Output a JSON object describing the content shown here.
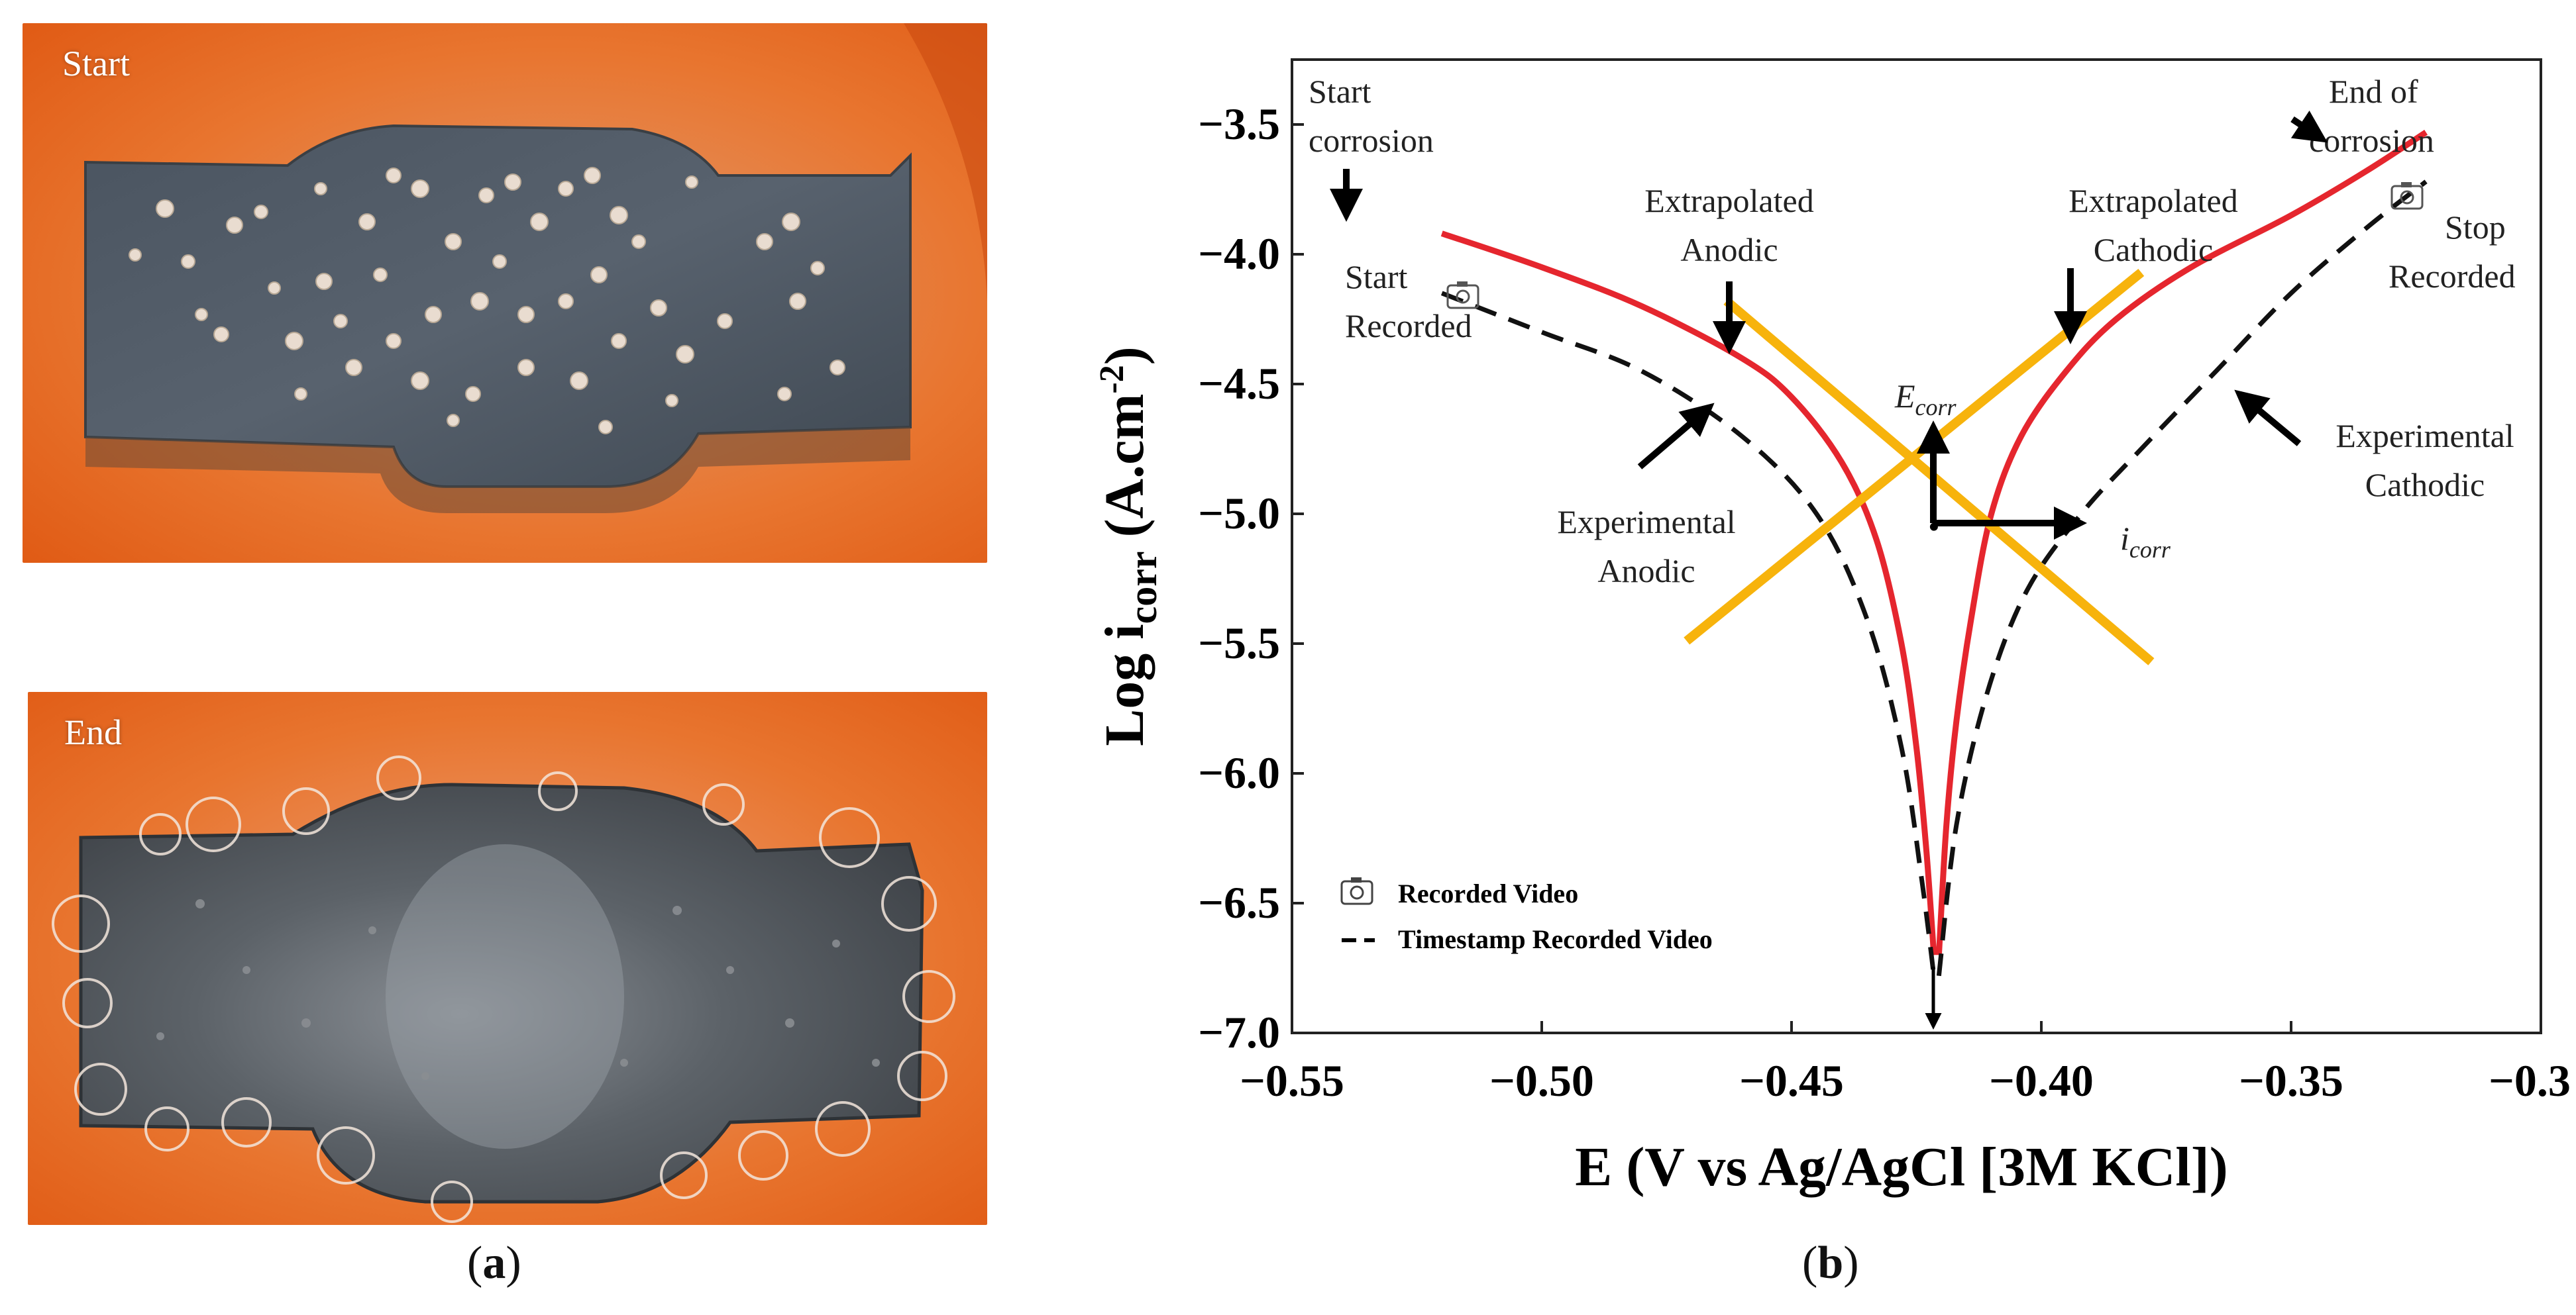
{
  "panel_a": {
    "top_label": "Start",
    "bottom_label": "End",
    "caption_open": "(",
    "caption_letter": "a",
    "caption_close": ")"
  },
  "panel_b": {
    "caption_open": "(",
    "caption_letter": "b",
    "caption_close": ")"
  },
  "colors": {
    "experimental": "#e5262e",
    "extrapolated": "#f7b30c",
    "timestamp_curve": "#111111",
    "photo_background": "#e8692b",
    "metal": "#4e5763"
  },
  "chart_data": {
    "type": "line",
    "xlabel": "E (V vs Ag/AgCl [3M KCl])",
    "ylabel_main": "Log i",
    "ylabel_sub": "corr",
    "ylabel_unit": " (A.cm",
    "ylabel_exp": "-2",
    "ylabel_close": ")",
    "xlim": [
      -0.55,
      -0.3
    ],
    "ylim": [
      -7.0,
      -3.25
    ],
    "x_ticks": [
      -0.55,
      -0.5,
      -0.45,
      -0.4,
      -0.35,
      -0.3
    ],
    "x_tick_labels": [
      "−0.55",
      "−0.50",
      "−0.45",
      "−0.40",
      "−0.35",
      "−0.30"
    ],
    "y_ticks": [
      -3.5,
      -4.0,
      -4.5,
      -5.0,
      -5.5,
      -6.0,
      -6.5,
      -7.0
    ],
    "y_tick_labels": [
      "−3.5",
      "−4.0",
      "−4.5",
      "−5.0",
      "−5.5",
      "−6.0",
      "−6.5",
      "−7.0"
    ],
    "series": [
      {
        "key": "experimental_anodic",
        "x": [
          -0.52,
          -0.5,
          -0.48,
          -0.46,
          -0.45,
          -0.44,
          -0.433,
          -0.428,
          -0.425,
          -0.423,
          -0.4215
        ],
        "y": [
          -3.92,
          -4.05,
          -4.2,
          -4.4,
          -4.55,
          -4.8,
          -5.1,
          -5.5,
          -5.9,
          -6.3,
          -6.7
        ]
      },
      {
        "key": "experimental_cathodic",
        "x": [
          -0.4205,
          -0.419,
          -0.417,
          -0.414,
          -0.41,
          -0.404,
          -0.395,
          -0.385,
          -0.37,
          -0.35,
          -0.335,
          -0.323
        ],
        "y": [
          -6.7,
          -6.2,
          -5.8,
          -5.4,
          -5.0,
          -4.7,
          -4.45,
          -4.25,
          -4.05,
          -3.85,
          -3.68,
          -3.53
        ]
      },
      {
        "key": "timestamp_anodic",
        "x": [
          -0.52,
          -0.5,
          -0.48,
          -0.46,
          -0.445,
          -0.435,
          -0.428,
          -0.424,
          -0.4215
        ],
        "y": [
          -4.15,
          -4.3,
          -4.45,
          -4.7,
          -5.0,
          -5.4,
          -5.9,
          -6.4,
          -6.78
        ]
      },
      {
        "key": "timestamp_cathodic",
        "x": [
          -0.4205,
          -0.417,
          -0.411,
          -0.403,
          -0.392,
          -0.38,
          -0.365,
          -0.35,
          -0.335,
          -0.323
        ],
        "y": [
          -6.78,
          -6.2,
          -5.7,
          -5.3,
          -5.0,
          -4.75,
          -4.45,
          -4.15,
          -3.9,
          -3.72
        ]
      },
      {
        "key": "extrapolated_anodic",
        "x": [
          -0.463,
          -0.378
        ],
        "y": [
          -4.18,
          -5.57
        ]
      },
      {
        "key": "extrapolated_cathodic",
        "x": [
          -0.471,
          -0.38
        ],
        "y": [
          -5.49,
          -4.07
        ]
      }
    ],
    "corrosion_point": {
      "E": -0.4215,
      "logi": -5.05
    },
    "annotations": {
      "start_corrosion": [
        "Start",
        "corrosion"
      ],
      "end_corrosion": [
        "End of",
        "corrosion"
      ],
      "start_recorded": [
        "Start",
        "Recorded"
      ],
      "stop_recorded": [
        "Stop",
        "Recorded"
      ],
      "extrapolated_anodic": [
        "Extrapolated",
        "Anodic"
      ],
      "extrapolated_cathodic": [
        "Extrapolated",
        "Cathodic"
      ],
      "experimental_anodic": [
        "Experimental",
        "Anodic"
      ],
      "experimental_cathodic": [
        "Experimental",
        "Cathodic"
      ],
      "ecorr_main": "E",
      "ecorr_sub": "corr",
      "icorr_main": "i",
      "icorr_sub": "corr"
    },
    "legend": {
      "recorded_video": "Recorded Video",
      "timestamp_recorded_video": "Timestamp Recorded Video"
    }
  }
}
